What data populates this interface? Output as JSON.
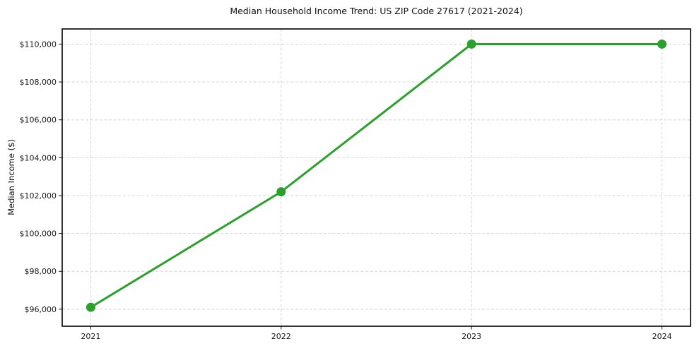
{
  "chart_data": {
    "type": "line",
    "title": "Median Household Income Trend: US ZIP Code 27617 (2021-2024)",
    "ylabel": "Median Income ($)",
    "xlabel": "",
    "x": [
      2021,
      2022,
      2023,
      2024
    ],
    "xtick_labels": [
      "2021",
      "2022",
      "2023",
      "2024"
    ],
    "values": [
      96100,
      102200,
      110000,
      110000
    ],
    "yticks": [
      96000,
      98000,
      100000,
      102000,
      104000,
      106000,
      108000,
      110000
    ],
    "ytick_labels": [
      "$96,000",
      "$98,000",
      "$100,000",
      "$102,000",
      "$104,000",
      "$106,000",
      "$108,000",
      "$110,000"
    ],
    "xlim": [
      2020.85,
      2024.15
    ],
    "ylim": [
      95100,
      110800
    ],
    "grid": true,
    "grid_style": "dashed",
    "legend_position": "none",
    "line_color": "#2ca02c",
    "marker": "circle",
    "marker_radius": 6.5,
    "background_color": "#ffffff"
  }
}
